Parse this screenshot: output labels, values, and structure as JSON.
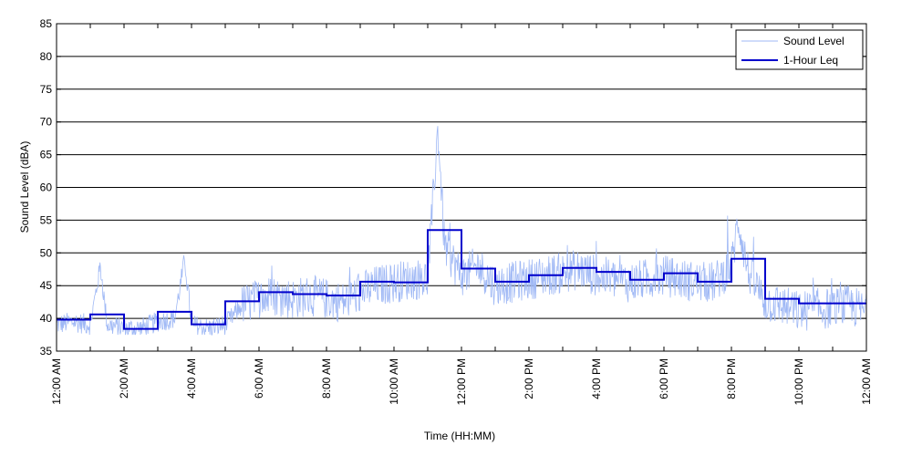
{
  "chart_data": {
    "type": "line",
    "title": "",
    "xlabel": "Time (HH:MM)",
    "ylabel": "Sound Level (dBA)",
    "ylim": [
      35,
      85
    ],
    "xlim": [
      0,
      24
    ],
    "yticks": [
      35,
      40,
      45,
      50,
      55,
      60,
      65,
      70,
      75,
      80,
      85
    ],
    "xtick_labels": [
      "12:00 AM",
      "2:00 AM",
      "4:00 AM",
      "6:00 AM",
      "8:00 AM",
      "10:00 AM",
      "12:00 PM",
      "2:00 PM",
      "4:00 PM",
      "6:00 PM",
      "8:00 PM",
      "10:00 PM",
      "12:00 AM"
    ],
    "xtick_hours": [
      0,
      2,
      4,
      6,
      8,
      10,
      12,
      14,
      16,
      18,
      20,
      22,
      24
    ],
    "grid": "horizontal",
    "legend": "top-right",
    "series": [
      {
        "name": "Sound Level",
        "color": "#9fb8f5",
        "style": "thin-noisy",
        "x_hours": [
          0,
          0.5,
          1,
          1.3,
          1.5,
          2,
          2.5,
          3,
          3.5,
          3.8,
          4,
          4.5,
          5,
          5.5,
          6,
          6.5,
          7,
          7.5,
          8,
          8.5,
          9,
          9.5,
          10,
          10.5,
          11,
          11.3,
          11.5,
          12,
          12.5,
          13,
          13.5,
          14,
          14.5,
          15,
          15.5,
          16,
          16.5,
          17,
          17.5,
          18,
          18.5,
          19,
          19.5,
          20,
          20.2,
          20.5,
          21,
          21.5,
          22,
          22.5,
          23,
          23.5,
          24
        ],
        "values": [
          39,
          39.5,
          39,
          48,
          39,
          38.5,
          38.5,
          39.5,
          40,
          49,
          39,
          38.5,
          39,
          42,
          43,
          43.5,
          43,
          43.5,
          43,
          42.5,
          44,
          45,
          45.5,
          46,
          46,
          69,
          51,
          46.5,
          48,
          45,
          45.5,
          46,
          46.5,
          47,
          47.5,
          46.5,
          46,
          45.5,
          46,
          46.5,
          46,
          45.5,
          45.5,
          48,
          55,
          47,
          42.5,
          42,
          41,
          41.5,
          41.5,
          42,
          41
        ]
      },
      {
        "name": "1-Hour Leq",
        "color": "#0000cc",
        "style": "step",
        "x_hours": [
          0,
          1,
          2,
          3,
          4,
          5,
          6,
          7,
          8,
          9,
          10,
          11,
          12,
          13,
          14,
          15,
          16,
          17,
          18,
          19,
          20,
          21,
          22,
          23
        ],
        "values": [
          39.8,
          40.6,
          38.4,
          41.0,
          39.1,
          42.6,
          44.0,
          43.7,
          43.5,
          45.6,
          45.5,
          53.5,
          47.6,
          45.6,
          46.6,
          47.7,
          47.1,
          45.9,
          46.9,
          45.6,
          49.1,
          43.0,
          42.3,
          42.3
        ]
      }
    ]
  }
}
